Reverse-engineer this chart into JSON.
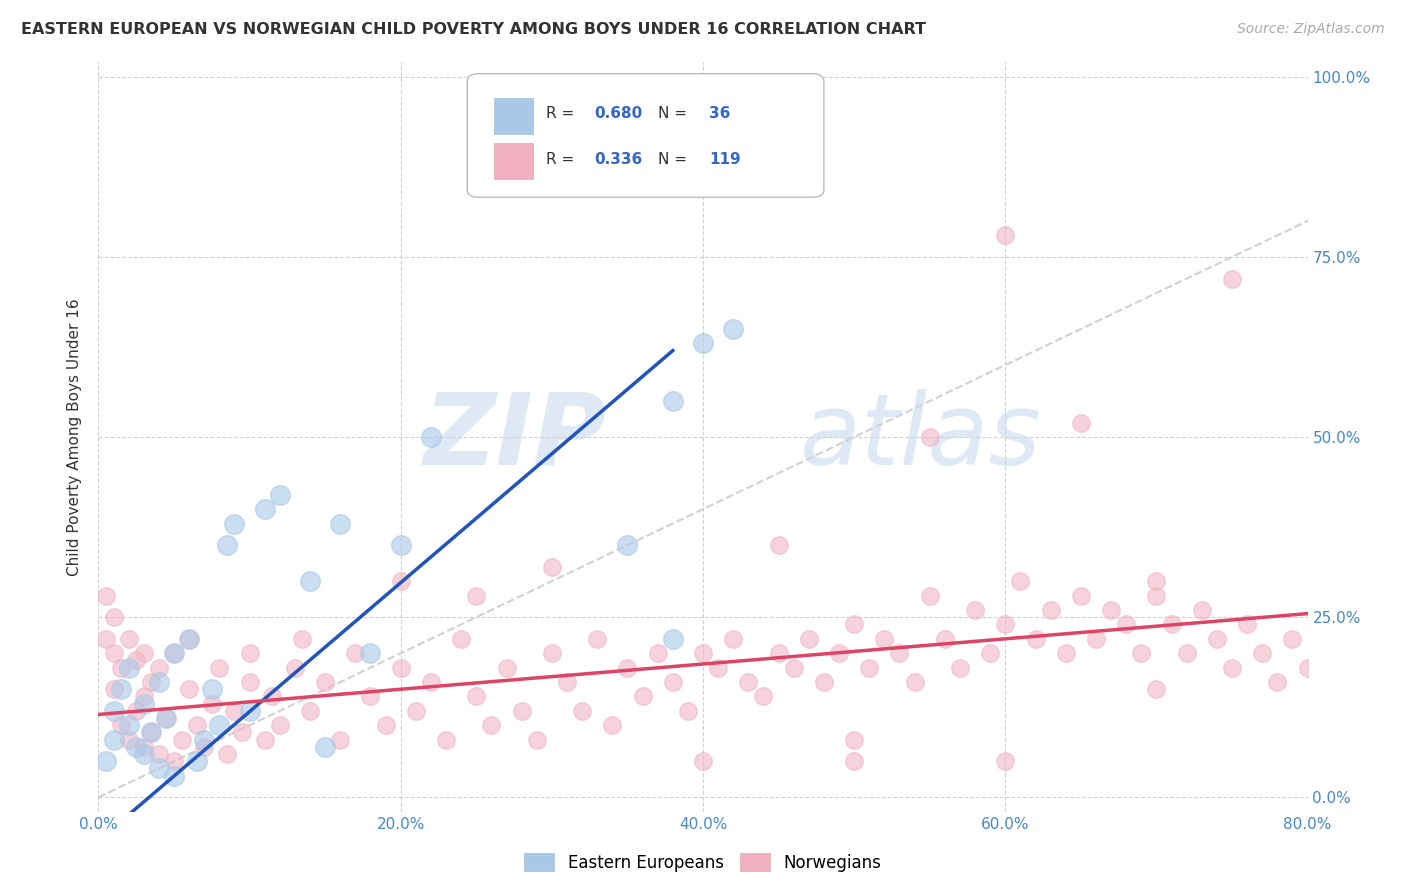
{
  "title": "EASTERN EUROPEAN VS NORWEGIAN CHILD POVERTY AMONG BOYS UNDER 16 CORRELATION CHART",
  "source": "Source: ZipAtlas.com",
  "ylabel": "Child Poverty Among Boys Under 16",
  "x_tick_values": [
    0.0,
    0.2,
    0.4,
    0.6,
    0.8
  ],
  "y_tick_values": [
    0.0,
    0.25,
    0.5,
    0.75,
    1.0
  ],
  "xlim": [
    0.0,
    0.8
  ],
  "ylim": [
    -0.02,
    1.02
  ],
  "blue_R": 0.68,
  "blue_N": 36,
  "pink_R": 0.336,
  "pink_N": 119,
  "blue_color": "#a8c8e8",
  "pink_color": "#f0b0c0",
  "blue_line_color": "#2255bb",
  "pink_line_color": "#dd4466",
  "diagonal_color": "#cccccc",
  "watermark_zip": "ZIP",
  "watermark_atlas": "atlas",
  "background_color": "#ffffff",
  "grid_color": "#cccccc",
  "blue_line_x": [
    0.0,
    0.38
  ],
  "blue_line_y": [
    -0.06,
    0.62
  ],
  "pink_line_x": [
    0.0,
    0.8
  ],
  "pink_line_y": [
    0.115,
    0.255
  ],
  "blue_scatter_x": [
    0.005,
    0.01,
    0.01,
    0.015,
    0.02,
    0.02,
    0.025,
    0.03,
    0.03,
    0.035,
    0.04,
    0.04,
    0.045,
    0.05,
    0.05,
    0.06,
    0.065,
    0.07,
    0.075,
    0.08,
    0.085,
    0.09,
    0.1,
    0.11,
    0.12,
    0.14,
    0.15,
    0.16,
    0.18,
    0.2,
    0.22,
    0.35,
    0.38,
    0.38,
    0.4,
    0.42
  ],
  "blue_scatter_y": [
    0.05,
    0.08,
    0.12,
    0.15,
    0.1,
    0.18,
    0.07,
    0.06,
    0.13,
    0.09,
    0.04,
    0.16,
    0.11,
    0.03,
    0.2,
    0.22,
    0.05,
    0.08,
    0.15,
    0.1,
    0.35,
    0.38,
    0.12,
    0.4,
    0.42,
    0.3,
    0.07,
    0.38,
    0.2,
    0.35,
    0.5,
    0.35,
    0.22,
    0.55,
    0.63,
    0.65
  ],
  "pink_scatter_x": [
    0.005,
    0.005,
    0.01,
    0.01,
    0.01,
    0.015,
    0.015,
    0.02,
    0.02,
    0.025,
    0.025,
    0.03,
    0.03,
    0.03,
    0.035,
    0.035,
    0.04,
    0.04,
    0.045,
    0.05,
    0.05,
    0.055,
    0.06,
    0.06,
    0.065,
    0.07,
    0.075,
    0.08,
    0.085,
    0.09,
    0.095,
    0.1,
    0.1,
    0.11,
    0.115,
    0.12,
    0.13,
    0.135,
    0.14,
    0.15,
    0.16,
    0.17,
    0.18,
    0.19,
    0.2,
    0.21,
    0.22,
    0.23,
    0.24,
    0.25,
    0.26,
    0.27,
    0.28,
    0.29,
    0.3,
    0.31,
    0.32,
    0.33,
    0.34,
    0.35,
    0.36,
    0.37,
    0.38,
    0.39,
    0.4,
    0.41,
    0.42,
    0.43,
    0.44,
    0.45,
    0.46,
    0.47,
    0.48,
    0.49,
    0.5,
    0.51,
    0.52,
    0.53,
    0.54,
    0.55,
    0.56,
    0.57,
    0.58,
    0.59,
    0.6,
    0.61,
    0.62,
    0.63,
    0.64,
    0.65,
    0.66,
    0.67,
    0.68,
    0.69,
    0.7,
    0.71,
    0.72,
    0.73,
    0.74,
    0.75,
    0.76,
    0.77,
    0.78,
    0.79,
    0.8,
    0.45,
    0.5,
    0.55,
    0.6,
    0.65,
    0.7,
    0.75,
    0.2,
    0.25,
    0.3,
    0.4,
    0.5,
    0.6,
    0.7
  ],
  "pink_scatter_y": [
    0.22,
    0.28,
    0.15,
    0.2,
    0.25,
    0.1,
    0.18,
    0.08,
    0.22,
    0.12,
    0.19,
    0.07,
    0.14,
    0.2,
    0.09,
    0.16,
    0.06,
    0.18,
    0.11,
    0.05,
    0.2,
    0.08,
    0.15,
    0.22,
    0.1,
    0.07,
    0.13,
    0.18,
    0.06,
    0.12,
    0.09,
    0.16,
    0.2,
    0.08,
    0.14,
    0.1,
    0.18,
    0.22,
    0.12,
    0.16,
    0.08,
    0.2,
    0.14,
    0.1,
    0.18,
    0.12,
    0.16,
    0.08,
    0.22,
    0.14,
    0.1,
    0.18,
    0.12,
    0.08,
    0.2,
    0.16,
    0.12,
    0.22,
    0.1,
    0.18,
    0.14,
    0.2,
    0.16,
    0.12,
    0.2,
    0.18,
    0.22,
    0.16,
    0.14,
    0.2,
    0.18,
    0.22,
    0.16,
    0.2,
    0.24,
    0.18,
    0.22,
    0.2,
    0.16,
    0.28,
    0.22,
    0.18,
    0.26,
    0.2,
    0.24,
    0.3,
    0.22,
    0.26,
    0.2,
    0.28,
    0.22,
    0.26,
    0.24,
    0.2,
    0.28,
    0.24,
    0.2,
    0.26,
    0.22,
    0.18,
    0.24,
    0.2,
    0.16,
    0.22,
    0.18,
    0.35,
    0.05,
    0.5,
    0.78,
    0.52,
    0.3,
    0.72,
    0.3,
    0.28,
    0.32,
    0.05,
    0.08,
    0.05,
    0.15
  ]
}
